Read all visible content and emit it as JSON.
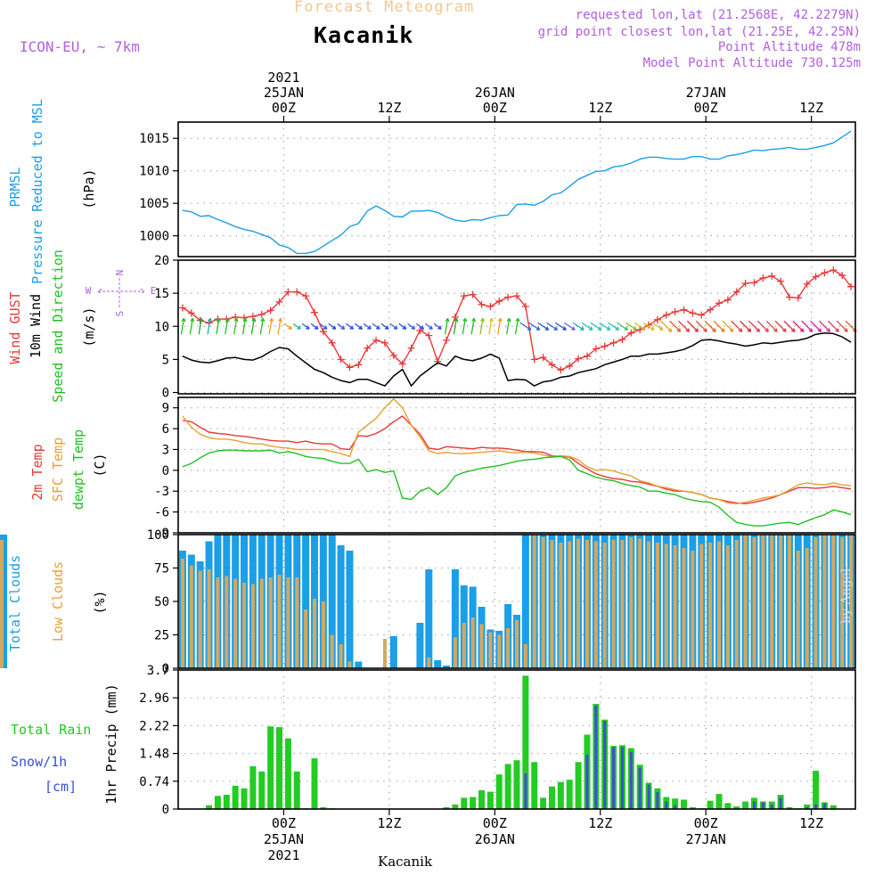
{
  "header": {
    "title": "Forecast Meteogram",
    "station": "Kacanik",
    "model": "ICON-EU, ~ 7km",
    "requested": "requested lon,lat (21.2568E, 42.2279N)",
    "gridpoint": "grid point closest lon,lat (21.25E, 42.25N)",
    "altitude": "Point Altitude 478m",
    "model_altitude": "Model Point Altitude 730.125m",
    "footer_station": "Kacanik",
    "watermark": "by Angel"
  },
  "colors": {
    "pressure": "#1a9fe8",
    "gust": "#e83838",
    "wind": "#000000",
    "temp2m": "#e83838",
    "sfc": "#e8a030",
    "dewpt": "#22c022",
    "total_cloud": "#1a9fe8",
    "low_cloud": "#d4a860",
    "rain": "#22cc22",
    "snow": "#3b4ed8",
    "title": "#f0c890",
    "purple": "#b060e0",
    "gridline": "#888888"
  },
  "top_axis": [
    {
      "t": 0,
      "lines": [
        "2021",
        "25JAN",
        "00Z"
      ]
    },
    {
      "t": 12,
      "lines": [
        "12Z"
      ]
    },
    {
      "t": 24,
      "lines": [
        "26JAN",
        "00Z"
      ]
    },
    {
      "t": 36,
      "lines": [
        "12Z"
      ]
    },
    {
      "t": 48,
      "lines": [
        "27JAN",
        "00Z"
      ]
    },
    {
      "t": 60,
      "lines": [
        "12Z"
      ]
    }
  ],
  "bottom_axis": [
    {
      "t": 0,
      "lines": [
        "00Z",
        "25JAN",
        "2021"
      ]
    },
    {
      "t": 12,
      "lines": [
        "12Z"
      ]
    },
    {
      "t": 24,
      "lines": [
        "00Z",
        "26JAN"
      ]
    },
    {
      "t": 36,
      "lines": [
        "12Z"
      ]
    },
    {
      "t": 48,
      "lines": [
        "00Z",
        "27JAN"
      ]
    },
    {
      "t": 60,
      "lines": [
        "12Z"
      ]
    }
  ],
  "chart_data": [
    {
      "type": "line",
      "panel": "pressure",
      "ylabel": [
        "PRMSL",
        "Pressure Reduced to MSL",
        "(hPa)"
      ],
      "yticks": [
        1000,
        1005,
        1010,
        1015
      ],
      "ylim": [
        996.8,
        1017.5
      ],
      "x_hours_from_25JAN00Z": [
        -11.5,
        -10.5,
        -9.5,
        -8.5,
        -7.5,
        -6.5,
        -5.5,
        -4.5,
        -3.5,
        -2.5,
        -1.5,
        -0.5,
        0.5,
        1.5,
        2.5,
        3.5,
        4.5,
        5.5,
        6.5,
        7.5,
        8.5,
        9.5,
        10.5,
        11.5,
        12.5,
        13.5,
        14.5,
        15.5,
        16.5,
        17.5,
        18.5,
        19.5,
        20.5,
        21.5,
        22.5,
        23.5,
        24.5,
        25.5,
        26.5,
        27.5,
        28.5,
        29.5,
        30.5,
        31.5,
        32.5,
        33.5,
        34.5,
        35.5,
        36.5,
        37.5,
        38.5,
        39.5,
        40.5,
        41.5,
        42.5,
        43.5,
        44.5,
        45.5,
        46.5,
        47.5,
        48.5,
        49.5,
        50.5,
        51.5,
        52.5,
        53.5,
        54.5,
        55.5,
        56.5,
        57.5,
        58.5,
        59.5,
        60.5,
        61.5,
        62.5,
        63.5,
        64.5
      ],
      "series": [
        {
          "values": [
            1003.9,
            1003.7,
            1003.0,
            1003.1,
            1002.5,
            1002.0,
            1001.4,
            1001.0,
            1000.7,
            1000.2,
            999.7,
            998.6,
            998.2,
            997.3,
            997.3,
            997.6,
            998.4,
            999.3,
            1000.1,
            1001.4,
            1001.9,
            1003.8,
            1004.6,
            1003.9,
            1003.0,
            1002.9,
            1003.8,
            1003.8,
            1003.9,
            1003.6,
            1002.9,
            1002.4,
            1002.2,
            1002.5,
            1002.4,
            1002.8,
            1003.1,
            1003.2,
            1004.8,
            1004.9,
            1004.7,
            1005.3,
            1006.3,
            1006.6,
            1007.6,
            1008.7,
            1009.3,
            1009.9,
            1010.0,
            1010.6,
            1010.8,
            1011.2,
            1011.8,
            1012.1,
            1012.1,
            1011.9,
            1011.8,
            1011.8,
            1012.2,
            1012.2,
            1011.8,
            1011.8,
            1012.3,
            1012.5,
            1012.8,
            1013.2,
            1013.1,
            1013.3,
            1013.4,
            1013.6,
            1013.3,
            1013.3,
            1013.6,
            1013.9,
            1014.3,
            1015.2,
            1016.1
          ]
        }
      ]
    },
    {
      "type": "line",
      "panel": "wind",
      "ylabel": [
        "Wind GUST",
        "10m Wind",
        "Speed and Direction",
        "(m/s)"
      ],
      "compass": [
        "N",
        "S",
        "W",
        "E"
      ],
      "yticks": [
        0,
        5,
        10,
        15,
        20
      ],
      "ylim": [
        -0.2,
        20
      ],
      "series": [
        {
          "name": "Wind GUST",
          "values": [
            12.8,
            12.0,
            10.9,
            10.5,
            11.1,
            11.1,
            11.4,
            11.3,
            11.5,
            11.8,
            12.4,
            13.7,
            15.2,
            15.2,
            14.6,
            12.1,
            9.2,
            7.5,
            5.0,
            3.8,
            4.2,
            6.7,
            7.9,
            7.5,
            5.6,
            4.3,
            6.7,
            9.4,
            8.6,
            4.7,
            7.9,
            11.4,
            14.6,
            14.8,
            13.3,
            13.0,
            13.8,
            14.4,
            14.6,
            13.0,
            5.0,
            5.3,
            4.2,
            3.4,
            4.0,
            5.1,
            5.5,
            6.6,
            7.0,
            7.5,
            8.0,
            9.0,
            9.5,
            10.2,
            11.0,
            11.7,
            12.2,
            12.5,
            12.0,
            11.7,
            12.5,
            13.5,
            14.0,
            15.2,
            16.5,
            16.6,
            17.3,
            17.6,
            16.8,
            14.4,
            14.3,
            16.4,
            17.5,
            18.1,
            18.5,
            17.7,
            16.0,
            15.8,
            15.4
          ]
        },
        {
          "name": "10m Wind",
          "values": [
            5.5,
            4.9,
            4.6,
            4.5,
            4.8,
            5.2,
            5.3,
            5.0,
            4.9,
            5.4,
            6.2,
            6.8,
            6.6,
            5.5,
            4.5,
            3.5,
            3.0,
            2.3,
            1.8,
            1.5,
            2.0,
            2.0,
            1.5,
            1.0,
            2.5,
            3.5,
            1.0,
            2.5,
            3.5,
            4.5,
            4.0,
            5.5,
            5.0,
            4.8,
            5.2,
            5.8,
            5.2,
            1.8,
            2.0,
            1.9,
            1.0,
            1.6,
            1.8,
            2.3,
            2.5,
            3.0,
            3.3,
            3.6,
            4.2,
            4.6,
            5.0,
            5.5,
            5.5,
            5.8,
            5.8,
            6.0,
            6.2,
            6.5,
            7.1,
            7.9,
            8.0,
            7.8,
            7.5,
            7.3,
            7.0,
            7.2,
            7.5,
            7.4,
            7.6,
            7.8,
            7.9,
            8.2,
            8.8,
            9.0,
            8.9,
            8.4,
            7.6,
            7.4,
            7.2
          ]
        }
      ]
    },
    {
      "type": "line",
      "panel": "temperature",
      "ylabel": [
        "2m Temp",
        "SFC Temp",
        "dewpt Temp",
        "(C)"
      ],
      "yticks": [
        -9,
        -6,
        -3,
        0,
        3,
        6,
        9
      ],
      "ylim": [
        -9,
        10.5
      ],
      "series": [
        {
          "name": "2m Temp",
          "values": [
            7.2,
            7.0,
            6.2,
            5.5,
            5.3,
            5.2,
            5.0,
            4.9,
            4.7,
            4.5,
            4.3,
            4.2,
            4.2,
            4.0,
            4.2,
            3.9,
            3.8,
            3.8,
            3.1,
            3.0,
            5.0,
            4.9,
            5.3,
            6.0,
            7.0,
            7.8,
            6.5,
            5.2,
            3.2,
            3.0,
            3.4,
            3.3,
            3.2,
            3.1,
            3.3,
            3.2,
            3.2,
            3.1,
            2.9,
            2.7,
            2.7,
            2.6,
            2.1,
            2.0,
            1.9,
            1.0,
            0.2,
            -0.5,
            -0.9,
            -1.2,
            -1.3,
            -1.6,
            -1.7,
            -2.0,
            -2.3,
            -2.7,
            -3.0,
            -3.0,
            -3.2,
            -3.5,
            -4.0,
            -4.2,
            -4.5,
            -4.7,
            -4.8,
            -4.6,
            -4.3,
            -4.0,
            -3.5,
            -3.0,
            -2.5,
            -2.5,
            -2.6,
            -2.5,
            -2.3,
            -2.5,
            -2.7,
            -3.3,
            -4.1
          ]
        },
        {
          "name": "SFC Temp",
          "values": [
            7.8,
            6.2,
            5.2,
            4.7,
            4.5,
            4.5,
            4.3,
            4.0,
            3.8,
            3.8,
            3.5,
            3.3,
            3.2,
            3.0,
            3.0,
            3.0,
            3.0,
            2.7,
            2.4,
            2.0,
            5.5,
            6.5,
            7.5,
            9.0,
            10.3,
            9.0,
            6.5,
            4.8,
            2.8,
            2.4,
            2.6,
            2.4,
            2.4,
            2.5,
            2.6,
            2.7,
            2.8,
            2.6,
            2.5,
            2.6,
            2.5,
            2.2,
            2.0,
            2.1,
            2.0,
            1.5,
            0.5,
            0.0,
            0.1,
            -0.1,
            -0.5,
            -0.8,
            -1.5,
            -1.8,
            -2.3,
            -2.5,
            -2.8,
            -3.0,
            -3.2,
            -3.5,
            -4.0,
            -4.2,
            -4.7,
            -4.8,
            -4.6,
            -4.3,
            -4.0,
            -3.8,
            -3.5,
            -2.8,
            -2.1,
            -1.8,
            -2.0,
            -2.1,
            -1.8,
            -2.1,
            -2.2,
            -2.7,
            -3.8
          ]
        },
        {
          "name": "dewpt Temp",
          "values": [
            0.5,
            1.0,
            1.8,
            2.5,
            2.8,
            2.9,
            2.9,
            2.8,
            2.8,
            2.8,
            2.9,
            2.5,
            2.7,
            2.4,
            2.0,
            1.8,
            1.7,
            1.3,
            1.0,
            1.0,
            1.6,
            -0.2,
            0.1,
            -0.3,
            -0.1,
            -4.0,
            -4.2,
            -3.0,
            -2.5,
            -3.5,
            -2.5,
            -0.8,
            -0.3,
            0.0,
            0.3,
            0.5,
            0.7,
            1.0,
            1.3,
            1.5,
            1.6,
            1.8,
            1.9,
            2.0,
            1.5,
            0.0,
            -0.5,
            -1.0,
            -1.3,
            -1.5,
            -1.9,
            -2.2,
            -2.4,
            -3.0,
            -3.0,
            -3.3,
            -3.5,
            -4.0,
            -4.3,
            -4.5,
            -4.6,
            -5.3,
            -6.5,
            -7.5,
            -7.8,
            -8.0,
            -8.0,
            -7.8,
            -7.6,
            -7.5,
            -7.8,
            -7.3,
            -6.8,
            -6.4,
            -5.7,
            -6.0,
            -6.4,
            -6.6,
            -7.2
          ]
        }
      ]
    },
    {
      "type": "bar",
      "panel": "clouds",
      "ylabel": [
        "Total Clouds",
        "Low Clouds",
        "(%)"
      ],
      "yticks": [
        0,
        25,
        50,
        75,
        100
      ],
      "ylim": [
        0,
        100
      ],
      "series": [
        {
          "name": "Total Clouds",
          "values": [
            88,
            85,
            80,
            95,
            100,
            100,
            100,
            100,
            100,
            100,
            100,
            100,
            100,
            100,
            100,
            100,
            100,
            100,
            92,
            88,
            5,
            0,
            0,
            0,
            24,
            0,
            0,
            34,
            74,
            6,
            2,
            74,
            62,
            61,
            46,
            29,
            28,
            48,
            40,
            100,
            100,
            100,
            100,
            100,
            100,
            100,
            100,
            100,
            100,
            100,
            100,
            100,
            100,
            100,
            100,
            100,
            100,
            100,
            100,
            100,
            100,
            100,
            100,
            100,
            100,
            100,
            100,
            100,
            100,
            100,
            100,
            100,
            100,
            100,
            100,
            100,
            100,
            100,
            14
          ]
        },
        {
          "name": "Low Clouds",
          "values": [
            82,
            77,
            73,
            74,
            68,
            69,
            67,
            64,
            63,
            67,
            68,
            70,
            68,
            68,
            44,
            52,
            50,
            25,
            18,
            5,
            0,
            0,
            0,
            22,
            0,
            0,
            0,
            0,
            8,
            0,
            0,
            23,
            34,
            38,
            33,
            27,
            25,
            30,
            36,
            18,
            100,
            98,
            96,
            94,
            95,
            97,
            96,
            95,
            94,
            96,
            96,
            98,
            97,
            95,
            94,
            93,
            92,
            90,
            88,
            93,
            94,
            95,
            92,
            96,
            100,
            98,
            100,
            100,
            100,
            100,
            88,
            90,
            98,
            100,
            100,
            98,
            100,
            96,
            12
          ]
        }
      ]
    },
    {
      "type": "bar",
      "panel": "precip",
      "ylabel": [
        "Total Rain",
        "Snow/1h",
        "[cm]",
        "1hr Precip (mm)"
      ],
      "yticks": [
        0,
        0.74,
        1.48,
        2.22,
        2.96,
        3.7
      ],
      "ylim": [
        0,
        3.7
      ],
      "series": [
        {
          "name": "Total Rain",
          "values": [
            0,
            0,
            0,
            0.1,
            0.35,
            0.38,
            0.62,
            0.55,
            1.14,
            1.0,
            2.2,
            2.18,
            1.88,
            1.0,
            0.02,
            1.35,
            0.05,
            0.02,
            0,
            0,
            0,
            0,
            0,
            0,
            0,
            0,
            0,
            0,
            0,
            0,
            0.05,
            0.12,
            0.3,
            0.32,
            0.5,
            0.46,
            0.92,
            1.2,
            1.3,
            3.55,
            1.25,
            0.3,
            0.6,
            0.72,
            0.78,
            1.25,
            1.98,
            2.8,
            2.38,
            1.68,
            1.7,
            1.62,
            1.18,
            0.7,
            0.55,
            0.32,
            0.28,
            0.25,
            0.05,
            0.02,
            0.22,
            0.4,
            0.16,
            0.07,
            0.2,
            0.3,
            0.2,
            0.2,
            0.38,
            0.05,
            0.02,
            0.12,
            1.02,
            0.18,
            0.1,
            0,
            0,
            0,
            0
          ]
        },
        {
          "name": "Snow/1h",
          "values": [
            0,
            0,
            0,
            0,
            0,
            0,
            0,
            0,
            0,
            0,
            0,
            0,
            0,
            0,
            0,
            0,
            0,
            0,
            0,
            0,
            0,
            0,
            0,
            0,
            0,
            0,
            0,
            0,
            0,
            0,
            0,
            0,
            0,
            0,
            0,
            0,
            0,
            0,
            0,
            0.95,
            0,
            0,
            0,
            0,
            0,
            0,
            1.45,
            2.75,
            2.35,
            1.65,
            1.65,
            1.52,
            1.1,
            0.65,
            0.45,
            0.2,
            0.1,
            0,
            0,
            0,
            0,
            0,
            0,
            0,
            0,
            0.2,
            0.18,
            0.12,
            0.3,
            0,
            0,
            0.05,
            0.12,
            0.15,
            0,
            0,
            0,
            0,
            0
          ]
        }
      ]
    }
  ]
}
